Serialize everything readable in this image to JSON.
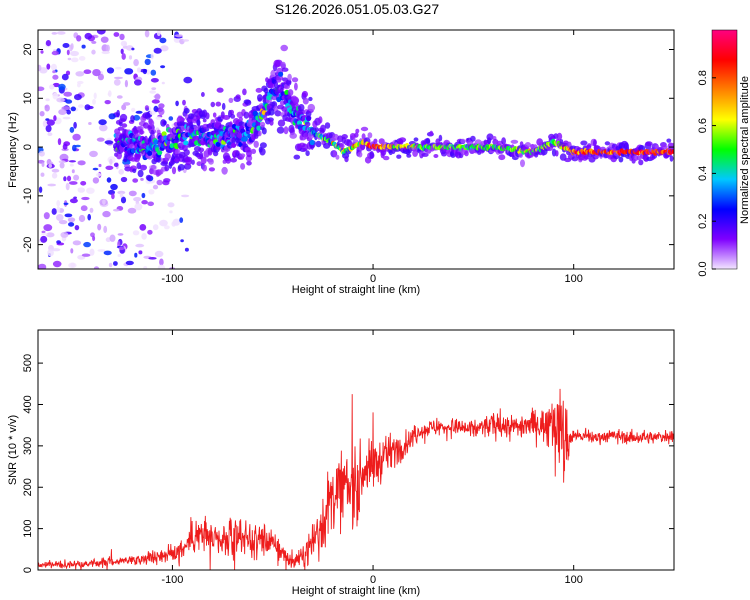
{
  "title": "S126.2026.051.05.03.G27",
  "chart_data": [
    {
      "type": "heatmap",
      "xlabel": "Height of straight line (km)",
      "ylabel": "Frequency (Hz)",
      "xlim": [
        -167,
        150
      ],
      "ylim": [
        -25,
        24
      ],
      "xticks": [
        -100,
        0,
        100
      ],
      "xtick_labels": [
        "-100",
        "0",
        "100"
      ],
      "yticks": [
        -20,
        -10,
        0,
        10,
        20
      ],
      "ytick_labels": [
        "-20",
        "-10",
        "0",
        "10",
        "20"
      ],
      "colorbar": {
        "label": "Normalized spectral amplitude",
        "range": [
          0,
          1
        ],
        "ticks": [
          0.0,
          0.2,
          0.4,
          0.6,
          0.8
        ],
        "tick_labels": [
          "0.0",
          "0.2",
          "0.4",
          "0.6",
          "0.8"
        ],
        "colormap": [
          "#f3e6ff",
          "#7f00ff",
          "#0000ff",
          "#00c8ff",
          "#00ff00",
          "#ffff00",
          "#ff8000",
          "#ff0000",
          "#ff0080"
        ]
      },
      "ridge": {
        "x": [
          -125,
          -110,
          -100,
          -90,
          -80,
          -70,
          -60,
          -55,
          -50,
          -45,
          -40,
          -35,
          -30,
          -25,
          -20,
          -15,
          -10,
          -5,
          0,
          10,
          20,
          40,
          60,
          80,
          90,
          100,
          120,
          150
        ],
        "y": [
          1,
          0,
          1,
          3,
          2,
          3,
          4,
          7,
          11,
          12,
          7,
          6,
          3,
          2,
          1,
          -1,
          0,
          1,
          0,
          0,
          0,
          0,
          0,
          -1,
          1,
          -1,
          -1,
          -1
        ],
        "amplitude": [
          0.25,
          0.3,
          0.35,
          0.35,
          0.3,
          0.3,
          0.35,
          0.45,
          0.25,
          0.3,
          0.35,
          0.3,
          0.4,
          0.45,
          0.5,
          0.5,
          0.55,
          0.65,
          0.8,
          0.7,
          0.55,
          0.5,
          0.5,
          0.55,
          0.5,
          0.75,
          0.85,
          0.85
        ]
      },
      "noise_region_x": [
        -167,
        -100
      ]
    },
    {
      "type": "line",
      "xlabel": "Height of straight line (km)",
      "ylabel": "SNR (10 * v/v)",
      "xlim": [
        -167,
        150
      ],
      "ylim": [
        0,
        580
      ],
      "xticks": [
        -100,
        0,
        100
      ],
      "xtick_labels": [
        "-100",
        "0",
        "100"
      ],
      "yticks": [
        0,
        100,
        200,
        300,
        400,
        500
      ],
      "ytick_labels": [
        "0",
        "100",
        "200",
        "300",
        "400",
        "500"
      ],
      "series": [
        {
          "name": "SNR",
          "color": "#ee1c1c",
          "x": [
            -167,
            -140,
            -120,
            -100,
            -95,
            -90,
            -85,
            -80,
            -75,
            -70,
            -65,
            -60,
            -55,
            -50,
            -45,
            -40,
            -35,
            -30,
            -25,
            -20,
            -15,
            -10,
            -5,
            0,
            5,
            10,
            15,
            20,
            25,
            30,
            40,
            50,
            60,
            70,
            80,
            85,
            90,
            95,
            100,
            110,
            120,
            130,
            140,
            150
          ],
          "y": [
            12,
            15,
            25,
            40,
            55,
            75,
            90,
            70,
            60,
            85,
            80,
            70,
            75,
            65,
            40,
            20,
            30,
            70,
            120,
            180,
            200,
            190,
            240,
            250,
            270,
            290,
            300,
            320,
            340,
            345,
            345,
            340,
            350,
            345,
            355,
            350,
            380,
            310,
            325,
            320,
            325,
            320,
            320,
            325
          ],
          "spread": [
            8,
            10,
            12,
            20,
            30,
            40,
            50,
            45,
            40,
            45,
            45,
            40,
            40,
            35,
            25,
            15,
            25,
            50,
            80,
            90,
            90,
            90,
            70,
            60,
            50,
            40,
            30,
            25,
            20,
            20,
            20,
            25,
            30,
            30,
            35,
            40,
            80,
            120,
            15,
            15,
            15,
            15,
            15,
            15
          ]
        }
      ]
    }
  ]
}
